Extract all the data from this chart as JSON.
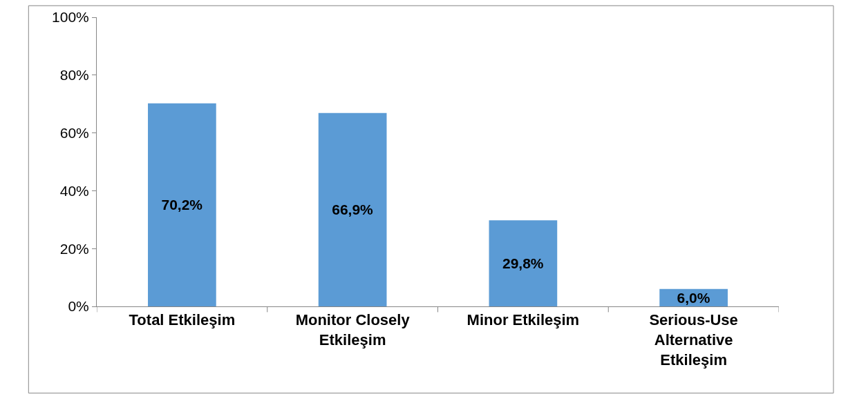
{
  "chart_data": {
    "type": "bar",
    "categories": [
      "Total Etkileşim",
      "Monitor Closely Etkileşim",
      "Minor Etkileşim",
      "Serious-Use Alternative Etkileşim"
    ],
    "values": [
      70.2,
      66.9,
      29.8,
      6.0
    ],
    "value_labels": [
      "70,2%",
      "66,9%",
      "29,8%",
      "6,0%"
    ],
    "color": "#5b9bd5",
    "yticks": [
      {
        "value": 0,
        "label": "0%"
      },
      {
        "value": 20,
        "label": "20%"
      },
      {
        "value": 40,
        "label": "40%"
      },
      {
        "value": 60,
        "label": "60%"
      },
      {
        "value": 80,
        "label": "80%"
      },
      {
        "value": 100,
        "label": "100%"
      }
    ],
    "ylim": [
      0,
      100
    ]
  }
}
